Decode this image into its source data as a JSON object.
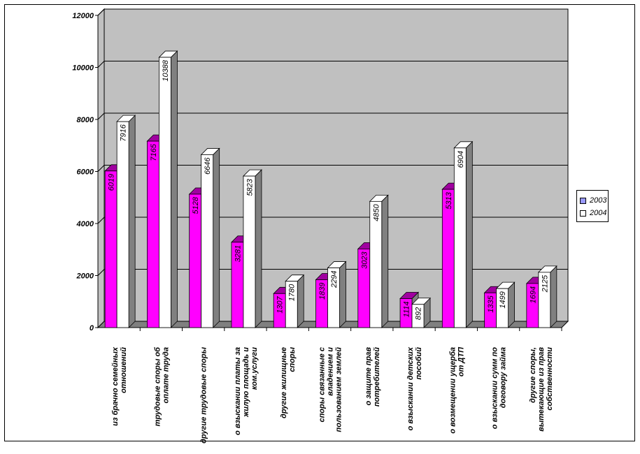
{
  "chart_data": {
    "type": "bar",
    "title": "",
    "xlabel": "",
    "ylabel": "",
    "ylim": [
      0,
      12000
    ],
    "y_ticks": [
      "0",
      "2000",
      "4000",
      "6000",
      "8000",
      "10000",
      "12000"
    ],
    "grid": true,
    "legend_position": "right",
    "categories": [
      [
        "из брачно семейных",
        "отношений"
      ],
      [
        "трудовые споры об",
        "оплате труда"
      ],
      [
        "другие трудовые споры"
      ],
      [
        "о взыскании платы за",
        "жилую площадь и",
        "ком.услуги"
      ],
      [
        "другие жилищные",
        "споры"
      ],
      [
        "споры связанные с",
        "владением и",
        "пользованием землей"
      ],
      [
        "о защите прав",
        "потребителей"
      ],
      [
        "о взыскании детских",
        "пособий"
      ],
      [
        "о возмещении ущерба",
        "от ДТП"
      ],
      [
        "о взыскании сумм по",
        "договору займа"
      ],
      [
        "другие споры,",
        "вытекающие из прав",
        "собственности"
      ]
    ],
    "series": [
      {
        "name": "2003",
        "color": "#ff00ff",
        "legend_color": "#9999ff",
        "values": [
          6019,
          7165,
          5128,
          3281,
          1307,
          1839,
          3023,
          1114,
          5313,
          1335,
          1694
        ],
        "labels": [
          "6019",
          "7165",
          "5128",
          "3281",
          "1307",
          "1839",
          "3023",
          "1114",
          "5313",
          "1335",
          "1694"
        ]
      },
      {
        "name": "2004",
        "color": "#ffffff",
        "legend_color": "#ffffff",
        "values": [
          7916,
          10388,
          6646,
          5823,
          1780,
          2294,
          4850,
          892,
          6904,
          1499,
          2125
        ],
        "labels": [
          "7916",
          "10388",
          "6646",
          "5823",
          "1780",
          "2294",
          "4850",
          "892",
          "6904",
          "1499",
          "2125"
        ]
      }
    ],
    "colors": {
      "plot_wall": "#c0c0c0",
      "floor": "#808080",
      "side": "#808080",
      "grid": "#000000"
    }
  }
}
